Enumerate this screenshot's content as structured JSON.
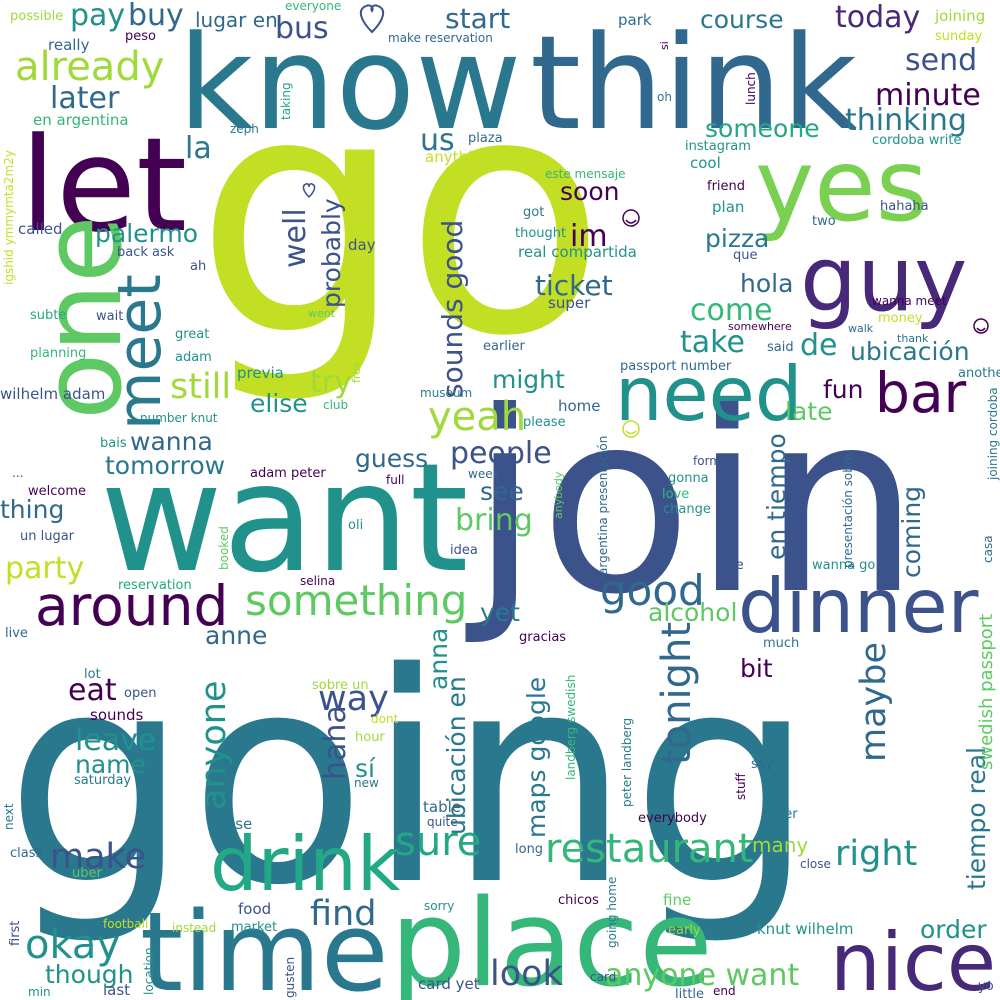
{
  "colors": {
    "background": "#ffffff",
    "palette": [
      "#440154",
      "#3b528b",
      "#21918c",
      "#2a788e",
      "#35b779",
      "#5ec962",
      "#9fda3a",
      "#c2df23",
      "#414487",
      "#22a884"
    ]
  },
  "words": [
    {
      "text": "go",
      "color": "#c2df23"
    },
    {
      "text": "going",
      "color": "#2a788e"
    },
    {
      "text": "join",
      "color": "#3b528b"
    },
    {
      "text": "want",
      "color": "#21918c"
    },
    {
      "text": "know",
      "color": "#2a788e"
    },
    {
      "text": "think",
      "color": "#31688e"
    },
    {
      "text": "place",
      "color": "#35b779"
    },
    {
      "text": "time",
      "color": "#2a788e"
    },
    {
      "text": "let",
      "color": "#440154"
    },
    {
      "text": "one",
      "color": "#5ec962"
    },
    {
      "text": "yes",
      "color": "#7ad151"
    },
    {
      "text": "guy",
      "color": "#482878"
    },
    {
      "text": "need",
      "color": "#21918c"
    },
    {
      "text": "dinner",
      "color": "#3b528b"
    },
    {
      "text": "around",
      "color": "#440154"
    },
    {
      "text": "drink",
      "color": "#22a884"
    },
    {
      "text": "nice",
      "color": "#482878"
    },
    {
      "text": "meet",
      "color": "#2a788e"
    },
    {
      "text": "bar",
      "color": "#440154"
    },
    {
      "text": "something",
      "color": "#5ec962"
    },
    {
      "text": "good",
      "color": "#31688e"
    },
    {
      "text": "restaurant",
      "color": "#35b779"
    },
    {
      "text": "tonight",
      "color": "#31688e"
    },
    {
      "text": "okay",
      "color": "#21918c"
    },
    {
      "text": "sure",
      "color": "#22a884"
    },
    {
      "text": "make",
      "color": "#3b528b"
    },
    {
      "text": "anyone",
      "color": "#21918c"
    },
    {
      "text": "maybe",
      "color": "#31688e"
    },
    {
      "text": "find",
      "color": "#31688e"
    },
    {
      "text": "look",
      "color": "#3b528b"
    },
    {
      "text": "right",
      "color": "#21918c"
    },
    {
      "text": "anyone want",
      "color": "#5ec962"
    },
    {
      "text": "already",
      "color": "#9fda3a"
    },
    {
      "text": "pay",
      "color": "#21918c"
    },
    {
      "text": "buy",
      "color": "#31688e"
    },
    {
      "text": "later",
      "color": "#31688e"
    },
    {
      "text": "bus",
      "color": "#3b528b"
    },
    {
      "text": "start",
      "color": "#31688e"
    },
    {
      "text": "course",
      "color": "#2a788e"
    },
    {
      "text": "today",
      "color": "#482878"
    },
    {
      "text": "send",
      "color": "#3b528b"
    },
    {
      "text": "minute",
      "color": "#440154"
    },
    {
      "text": "thinking",
      "color": "#2a788e"
    },
    {
      "text": "someone",
      "color": "#22a884"
    },
    {
      "text": "us",
      "color": "#2a788e"
    },
    {
      "text": "la",
      "color": "#2a788e"
    },
    {
      "text": "well",
      "color": "#3b528b"
    },
    {
      "text": "probably",
      "color": "#3b528b"
    },
    {
      "text": "im",
      "color": "#440154"
    },
    {
      "text": "soon",
      "color": "#440154"
    },
    {
      "text": "sounds good",
      "color": "#3b528b"
    },
    {
      "text": "palermo",
      "color": "#21918c"
    },
    {
      "text": "ticket",
      "color": "#31688e"
    },
    {
      "text": "pizza",
      "color": "#2a788e"
    },
    {
      "text": "hola",
      "color": "#31688e"
    },
    {
      "text": "come",
      "color": "#35b779"
    },
    {
      "text": "take",
      "color": "#21918c"
    },
    {
      "text": "de",
      "color": "#21918c"
    },
    {
      "text": "ubicación",
      "color": "#2a788e"
    },
    {
      "text": "still",
      "color": "#9fda3a"
    },
    {
      "text": "try",
      "color": "#9fda3a"
    },
    {
      "text": "elise",
      "color": "#21918c"
    },
    {
      "text": "yeah",
      "color": "#9fda3a"
    },
    {
      "text": "might",
      "color": "#21918c"
    },
    {
      "text": "fun",
      "color": "#440154"
    },
    {
      "text": "late",
      "color": "#5ec962"
    },
    {
      "text": "people",
      "color": "#3b528b"
    },
    {
      "text": "wanna",
      "color": "#31688e"
    },
    {
      "text": "tomorrow",
      "color": "#2a788e"
    },
    {
      "text": "guess",
      "color": "#31688e"
    },
    {
      "text": "see",
      "color": "#31688e"
    },
    {
      "text": "bring",
      "color": "#5ec962"
    },
    {
      "text": "en tiempo",
      "color": "#31688e"
    },
    {
      "text": "coming",
      "color": "#31688e"
    },
    {
      "text": "thing",
      "color": "#31688e"
    },
    {
      "text": "party",
      "color": "#c2df23"
    },
    {
      "text": "yet",
      "color": "#2a788e"
    },
    {
      "text": "alcohol",
      "color": "#5ec962"
    },
    {
      "text": "anne",
      "color": "#31688e"
    },
    {
      "text": "bit",
      "color": "#440154"
    },
    {
      "text": "eat",
      "color": "#440154"
    },
    {
      "text": "way",
      "color": "#3b528b"
    },
    {
      "text": "leave",
      "color": "#21918c"
    },
    {
      "text": "name",
      "color": "#21918c"
    },
    {
      "text": "haha",
      "color": "#3b528b"
    },
    {
      "text": "sí",
      "color": "#21918c"
    },
    {
      "text": "anna",
      "color": "#21918c"
    },
    {
      "text": "maps google",
      "color": "#2a788e"
    },
    {
      "text": "ubicación en",
      "color": "#2a788e"
    },
    {
      "text": "many",
      "color": "#9fda3a"
    },
    {
      "text": "order",
      "color": "#21918c"
    },
    {
      "text": "though",
      "color": "#21918c"
    },
    {
      "text": "tiempo real",
      "color": "#2a788e"
    },
    {
      "text": "swedish passport",
      "color": "#5ec962"
    },
    {
      "text": "really",
      "color": "#31688e"
    },
    {
      "text": "peso",
      "color": "#440154"
    },
    {
      "text": "lugar en",
      "color": "#31688e"
    },
    {
      "text": "everyone",
      "color": "#35b779"
    },
    {
      "text": "make reservation",
      "color": "#31688e"
    },
    {
      "text": "park",
      "color": "#31688e"
    },
    {
      "text": "joining",
      "color": "#9fda3a"
    },
    {
      "text": "sunday",
      "color": "#c2df23"
    },
    {
      "text": "possible",
      "color": "#9fda3a"
    },
    {
      "text": "en argentina",
      "color": "#35b779"
    },
    {
      "text": "zeph",
      "color": "#2a788e"
    },
    {
      "text": "taking",
      "color": "#22a884"
    },
    {
      "text": "plaza",
      "color": "#31688e"
    },
    {
      "text": "anything",
      "color": "#c2df23"
    },
    {
      "text": "instagram",
      "color": "#21918c"
    },
    {
      "text": "cool",
      "color": "#21918c"
    },
    {
      "text": "cordoba write",
      "color": "#21918c"
    },
    {
      "text": "friend",
      "color": "#440154"
    },
    {
      "text": "plan",
      "color": "#21918c"
    },
    {
      "text": "hahaha",
      "color": "#3b528b"
    },
    {
      "text": "two",
      "color": "#31688e"
    },
    {
      "text": "called",
      "color": "#3b528b"
    },
    {
      "text": "back ask",
      "color": "#3b528b"
    },
    {
      "text": "day",
      "color": "#3b528b"
    },
    {
      "text": "ah",
      "color": "#3b528b"
    },
    {
      "text": "este mensaje",
      "color": "#35b779"
    },
    {
      "text": "got",
      "color": "#2a788e"
    },
    {
      "text": "thought",
      "color": "#21918c"
    },
    {
      "text": "real compartida",
      "color": "#21918c"
    },
    {
      "text": "super",
      "color": "#3b528b"
    },
    {
      "text": "que",
      "color": "#3b528b"
    },
    {
      "text": "wanna meet",
      "color": "#440154"
    },
    {
      "text": "money",
      "color": "#c2df23"
    },
    {
      "text": "subte",
      "color": "#22a884"
    },
    {
      "text": "wait",
      "color": "#3b528b"
    },
    {
      "text": "went",
      "color": "#5ec962"
    },
    {
      "text": "great",
      "color": "#21918c"
    },
    {
      "text": "somewhere",
      "color": "#440154"
    },
    {
      "text": "walk",
      "color": "#31688e"
    },
    {
      "text": "thank",
      "color": "#2a788e"
    },
    {
      "text": "said",
      "color": "#31688e"
    },
    {
      "text": "planning",
      "color": "#35b779"
    },
    {
      "text": "adam",
      "color": "#21918c"
    },
    {
      "text": "earlier",
      "color": "#31688e"
    },
    {
      "text": "passport number",
      "color": "#31688e"
    },
    {
      "text": "another",
      "color": "#2a788e"
    },
    {
      "text": "previa",
      "color": "#21918c"
    },
    {
      "text": "free",
      "color": "#9fda3a"
    },
    {
      "text": "club",
      "color": "#35b779"
    },
    {
      "text": "museum",
      "color": "#2a788e"
    },
    {
      "text": "wilhelm adam",
      "color": "#3b528b"
    },
    {
      "text": "number knut",
      "color": "#21918c"
    },
    {
      "text": "please",
      "color": "#21918c"
    },
    {
      "text": "home",
      "color": "#31688e"
    },
    {
      "text": "bais",
      "color": "#21918c"
    },
    {
      "text": "adam peter",
      "color": "#440154"
    },
    {
      "text": "week",
      "color": "#31688e"
    },
    {
      "text": "form",
      "color": "#3b528b"
    },
    {
      "text": "gonna",
      "color": "#21918c"
    },
    {
      "text": "love",
      "color": "#35b779"
    },
    {
      "text": "change",
      "color": "#21918c"
    },
    {
      "text": "full",
      "color": "#440154"
    },
    {
      "text": "anybody",
      "color": "#5ec962"
    },
    {
      "text": "welcome",
      "color": "#440154"
    },
    {
      "text": "oli",
      "color": "#21918c"
    },
    {
      "text": "idea",
      "color": "#3b528b"
    },
    {
      "text": "un lugar",
      "color": "#3b528b"
    },
    {
      "text": "reservation",
      "color": "#22a884"
    },
    {
      "text": "booked",
      "color": "#5ec962"
    },
    {
      "text": "selina",
      "color": "#440154"
    },
    {
      "text": "ice",
      "color": "#3b528b"
    },
    {
      "text": "wanna go",
      "color": "#21918c"
    },
    {
      "text": "live",
      "color": "#31688e"
    },
    {
      "text": "gracias",
      "color": "#440154"
    },
    {
      "text": "much",
      "color": "#2a788e"
    },
    {
      "text": "lot",
      "color": "#2a788e"
    },
    {
      "text": "open",
      "color": "#3b528b"
    },
    {
      "text": "sounds",
      "color": "#440154"
    },
    {
      "text": "saturday",
      "color": "#2a788e"
    },
    {
      "text": "sobre un",
      "color": "#9fda3a"
    },
    {
      "text": "dont",
      "color": "#c2df23"
    },
    {
      "text": "hour",
      "color": "#9fda3a"
    },
    {
      "text": "new",
      "color": "#2a788e"
    },
    {
      "text": "say",
      "color": "#31688e"
    },
    {
      "text": "stuff",
      "color": "#440154"
    },
    {
      "text": "beer",
      "color": "#2a788e"
    },
    {
      "text": "table",
      "color": "#31688e"
    },
    {
      "text": "quite",
      "color": "#3b528b"
    },
    {
      "text": "everybody",
      "color": "#440154"
    },
    {
      "text": "house",
      "color": "#2a788e"
    },
    {
      "text": "next",
      "color": "#2a788e"
    },
    {
      "text": "class",
      "color": "#31688e"
    },
    {
      "text": "uber",
      "color": "#5ec962"
    },
    {
      "text": "long",
      "color": "#31688e"
    },
    {
      "text": "close",
      "color": "#3b528b"
    },
    {
      "text": "chicos",
      "color": "#440154"
    },
    {
      "text": "sorry",
      "color": "#21918c"
    },
    {
      "text": "fine",
      "color": "#5ec962"
    },
    {
      "text": "food",
      "color": "#3b528b"
    },
    {
      "text": "market",
      "color": "#21918c"
    },
    {
      "text": "football",
      "color": "#c2df23"
    },
    {
      "text": "instead",
      "color": "#9fda3a"
    },
    {
      "text": "early",
      "color": "#9fda3a"
    },
    {
      "text": "knut wilhelm",
      "color": "#21918c"
    },
    {
      "text": "first",
      "color": "#3b528b"
    },
    {
      "text": "min",
      "color": "#21918c"
    },
    {
      "text": "last",
      "color": "#3b528b"
    },
    {
      "text": "card yet",
      "color": "#3b528b"
    },
    {
      "text": "card",
      "color": "#3b528b"
    },
    {
      "text": "little",
      "color": "#31688e"
    },
    {
      "text": "end",
      "color": "#440154"
    },
    {
      "text": "yo",
      "color": "#3b528b"
    },
    {
      "text": "location",
      "color": "#21918c"
    },
    {
      "text": "gusten",
      "color": "#3b528b"
    },
    {
      "text": "going home",
      "color": "#2a788e"
    },
    {
      "text": "peter landberg",
      "color": "#2a788e"
    },
    {
      "text": "landberg swedish",
      "color": "#35b779"
    },
    {
      "text": "argentina presentación",
      "color": "#31688e"
    },
    {
      "text": "presentación sobre",
      "color": "#31688e"
    },
    {
      "text": "joining cordoba",
      "color": "#2a788e"
    },
    {
      "text": "casa",
      "color": "#31688e"
    },
    {
      "text": "igshid ymmymta2m2y",
      "color": "#c2df23"
    },
    {
      "text": "lunch",
      "color": "#440154"
    },
    {
      "text": "oh",
      "color": "#2a788e"
    },
    {
      "text": "si",
      "color": "#440154"
    },
    {
      "text": "...",
      "color": "#3b528b"
    }
  ]
}
